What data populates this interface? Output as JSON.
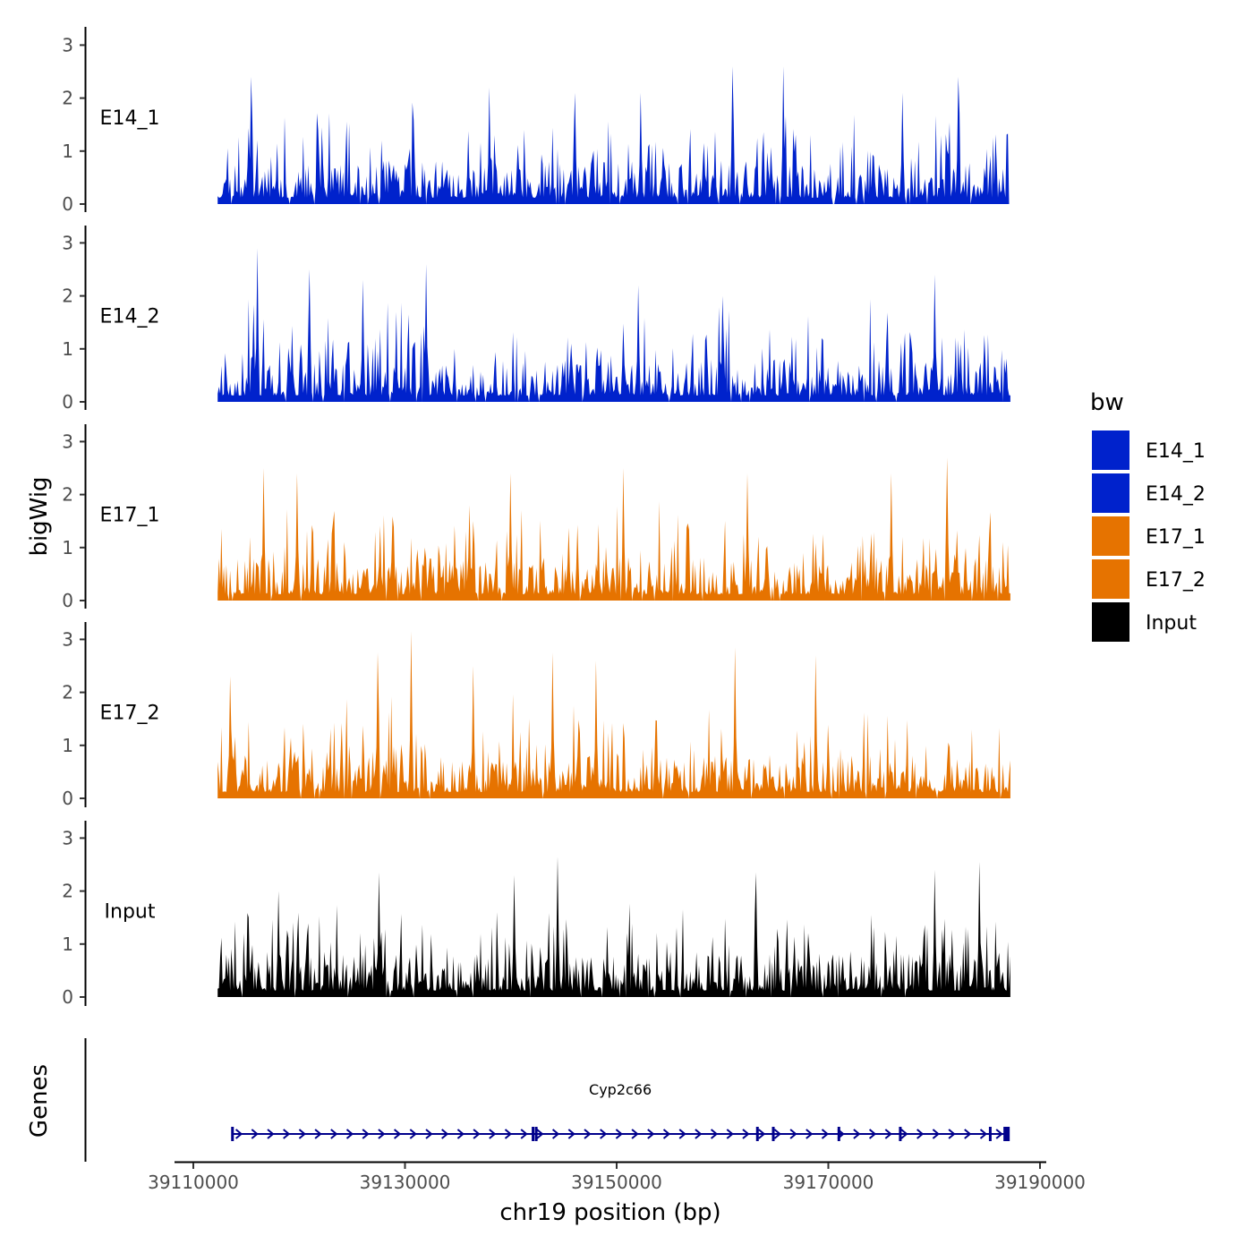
{
  "chart_data": {
    "type": "area",
    "title": "",
    "ylabel": "bigWig",
    "xlabel": "chr19 position (bp)",
    "ylim": [
      0,
      3.2
    ],
    "yticks": [
      0,
      1,
      2,
      3
    ],
    "xlim": [
      39108000,
      39191000
    ],
    "xticks": [
      39110000,
      39130000,
      39150000,
      39170000,
      39190000
    ],
    "xtick_labels": [
      "39110000",
      "39130000",
      "39150000",
      "39170000",
      "39190000"
    ],
    "region": [
      39112300,
      39187200
    ],
    "series": [
      {
        "name": "E14_1",
        "color": "#0022CC",
        "seed": 11,
        "peaks": [
          {
            "x": 39115500,
            "y": 2.4
          },
          {
            "x": 39161000,
            "y": 2.6
          },
          {
            "x": 39165800,
            "y": 2.6
          },
          {
            "x": 39182300,
            "y": 2.4
          },
          {
            "x": 39152300,
            "y": 2.1
          },
          {
            "x": 39177000,
            "y": 2.1
          },
          {
            "x": 39138000,
            "y": 2.2
          },
          {
            "x": 39146000,
            "y": 2.1
          }
        ]
      },
      {
        "name": "E14_2",
        "color": "#0022CC",
        "seed": 23,
        "peaks": [
          {
            "x": 39116000,
            "y": 2.9
          },
          {
            "x": 39132000,
            "y": 2.6
          },
          {
            "x": 39121000,
            "y": 2.5
          },
          {
            "x": 39180000,
            "y": 2.4
          },
          {
            "x": 39152000,
            "y": 2.2
          },
          {
            "x": 39160000,
            "y": 2.0
          },
          {
            "x": 39126000,
            "y": 2.3
          }
        ]
      },
      {
        "name": "E17_1",
        "color": "#E67300",
        "seed": 37,
        "peaks": [
          {
            "x": 39181200,
            "y": 2.7
          },
          {
            "x": 39150600,
            "y": 2.5
          },
          {
            "x": 39116600,
            "y": 2.5
          },
          {
            "x": 39162400,
            "y": 2.4
          },
          {
            "x": 39140000,
            "y": 2.4
          },
          {
            "x": 39119800,
            "y": 2.4
          },
          {
            "x": 39176000,
            "y": 2.4
          }
        ]
      },
      {
        "name": "E17_2",
        "color": "#E67300",
        "seed": 53,
        "peaks": [
          {
            "x": 39130600,
            "y": 3.15
          },
          {
            "x": 39127400,
            "y": 2.75
          },
          {
            "x": 39168800,
            "y": 2.7
          },
          {
            "x": 39161200,
            "y": 2.85
          },
          {
            "x": 39136500,
            "y": 2.5
          },
          {
            "x": 39144000,
            "y": 2.75
          },
          {
            "x": 39113500,
            "y": 2.3
          },
          {
            "x": 39148000,
            "y": 2.6
          }
        ]
      },
      {
        "name": "Input",
        "color": "#000000",
        "seed": 71,
        "peaks": [
          {
            "x": 39144400,
            "y": 2.65
          },
          {
            "x": 39180000,
            "y": 2.4
          },
          {
            "x": 39184300,
            "y": 2.55
          },
          {
            "x": 39127500,
            "y": 2.35
          },
          {
            "x": 39163200,
            "y": 2.35
          },
          {
            "x": 39140300,
            "y": 2.3
          },
          {
            "x": 39118000,
            "y": 2.0
          }
        ]
      }
    ],
    "legend": {
      "title": "bw",
      "position": "right",
      "entries": [
        "E14_1",
        "E14_2",
        "E17_1",
        "E17_2",
        "Input"
      ]
    },
    "genes_track": {
      "label": "Genes",
      "genes": [
        {
          "name": "Cyp2c66",
          "start": 39113600,
          "end": 39187100,
          "strand": "+",
          "exon_positions": [
            39113700,
            39142100,
            39142400,
            39163300,
            39164800,
            39171000,
            39176800,
            39185300,
            39186800
          ]
        }
      ],
      "color": "#00008B"
    }
  }
}
